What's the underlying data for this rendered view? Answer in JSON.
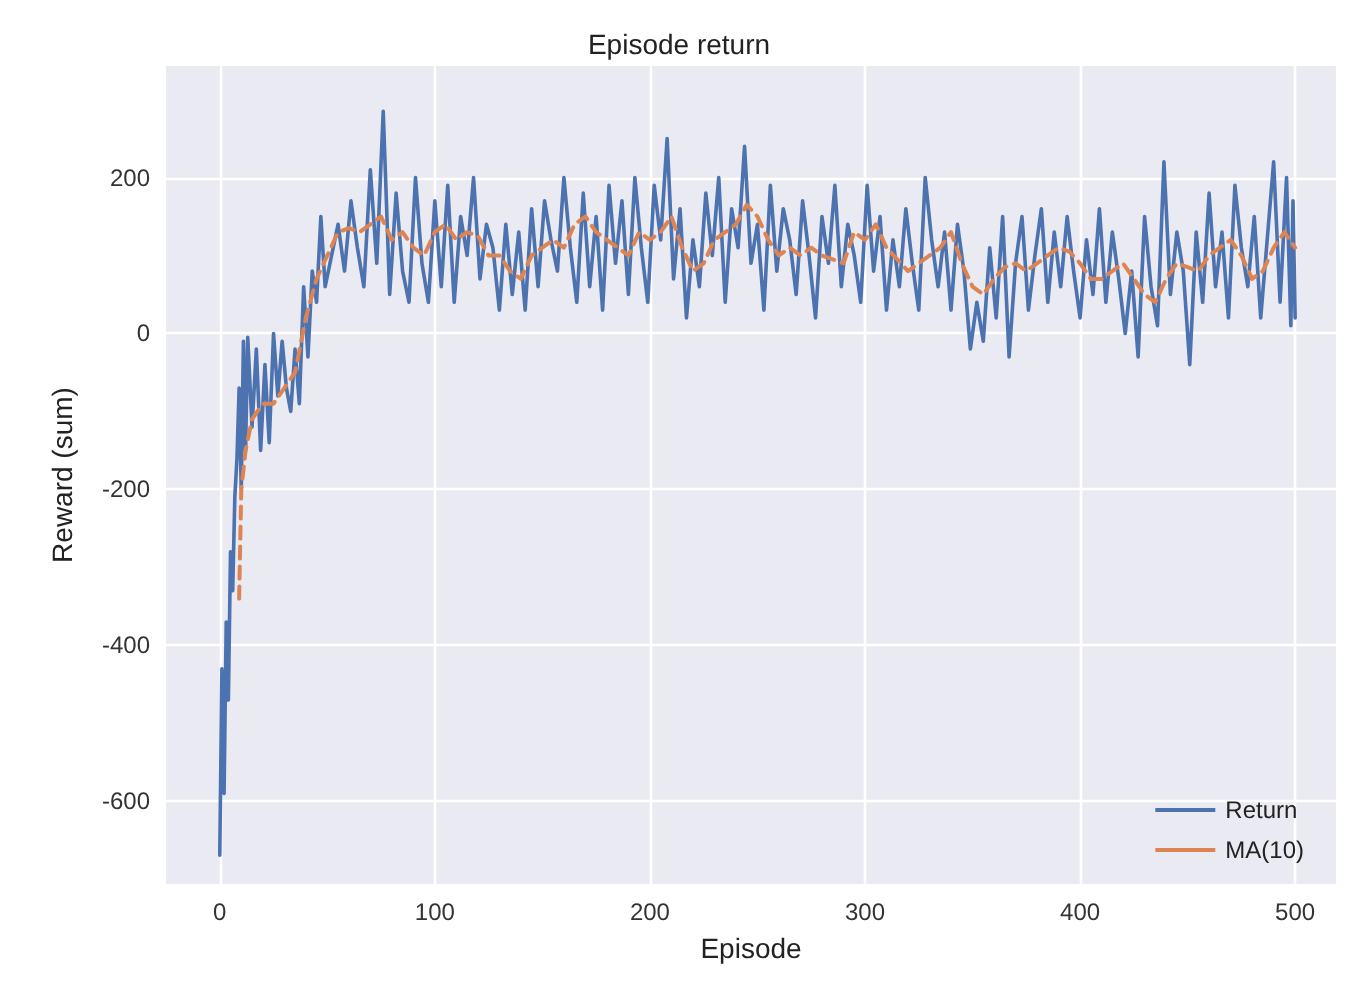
{
  "chart_data": {
    "type": "line",
    "title": "Episode return",
    "xlabel": "Episode",
    "ylabel": "Reward (sum)",
    "xlim": [
      -25,
      519
    ],
    "ylim": [
      -706,
      343
    ],
    "xticks": [
      0,
      100,
      200,
      300,
      400,
      500
    ],
    "yticks": [
      -600,
      -400,
      -200,
      0,
      200
    ],
    "grid": true,
    "legend": "bottom right",
    "series": [
      {
        "name": "Return",
        "color": "#4c72b0",
        "line_style": "solid",
        "x": [
          0,
          1,
          2,
          3,
          4,
          5,
          6,
          7,
          8,
          9,
          10,
          11,
          12,
          13,
          15,
          17,
          19,
          21,
          23,
          25,
          27,
          29,
          31,
          33,
          35,
          37,
          39,
          41,
          43,
          45,
          47,
          49,
          52,
          55,
          58,
          61,
          64,
          67,
          70,
          73,
          76,
          79,
          82,
          85,
          88,
          91,
          94,
          97,
          100,
          103,
          106,
          109,
          112,
          115,
          118,
          121,
          124,
          127,
          130,
          133,
          136,
          139,
          142,
          145,
          148,
          151,
          154,
          157,
          160,
          163,
          166,
          169,
          172,
          175,
          178,
          181,
          184,
          187,
          190,
          193,
          196,
          199,
          202,
          205,
          208,
          211,
          214,
          217,
          220,
          223,
          226,
          229,
          232,
          235,
          238,
          241,
          244,
          247,
          250,
          253,
          256,
          259,
          262,
          265,
          268,
          271,
          274,
          277,
          280,
          283,
          286,
          289,
          292,
          295,
          298,
          301,
          304,
          307,
          310,
          313,
          316,
          319,
          322,
          325,
          328,
          331,
          334,
          337,
          340,
          343,
          346,
          349,
          352,
          355,
          358,
          361,
          364,
          367,
          370,
          373,
          376,
          379,
          382,
          385,
          388,
          391,
          394,
          397,
          400,
          403,
          406,
          409,
          412,
          415,
          418,
          421,
          424,
          427,
          430,
          433,
          436,
          439,
          442,
          445,
          448,
          451,
          454,
          457,
          460,
          463,
          466,
          469,
          472,
          475,
          478,
          481,
          484,
          487,
          490,
          493,
          496,
          498,
          499,
          500
        ],
        "values": [
          -669,
          -430,
          -590,
          -370,
          -470,
          -280,
          -330,
          -210,
          -160,
          -70,
          -200,
          -10,
          -150,
          -5,
          -120,
          -20,
          -150,
          -40,
          -140,
          0,
          -80,
          -10,
          -70,
          -100,
          -20,
          -90,
          60,
          -30,
          80,
          40,
          150,
          60,
          100,
          140,
          80,
          170,
          110,
          60,
          210,
          90,
          285,
          50,
          180,
          80,
          40,
          200,
          90,
          40,
          170,
          60,
          190,
          40,
          150,
          100,
          200,
          70,
          140,
          110,
          30,
          140,
          50,
          130,
          30,
          160,
          60,
          170,
          120,
          80,
          200,
          110,
          40,
          180,
          60,
          150,
          30,
          190,
          90,
          170,
          50,
          200,
          110,
          40,
          190,
          120,
          250,
          70,
          160,
          20,
          120,
          60,
          180,
          100,
          200,
          40,
          160,
          110,
          240,
          90,
          140,
          30,
          190,
          80,
          160,
          120,
          50,
          170,
          100,
          20,
          150,
          90,
          190,
          60,
          140,
          100,
          40,
          190,
          80,
          150,
          30,
          120,
          60,
          160,
          90,
          30,
          200,
          120,
          60,
          130,
          30,
          140,
          80,
          -20,
          40,
          -10,
          110,
          20,
          150,
          -30,
          90,
          150,
          30,
          100,
          160,
          40,
          130,
          60,
          150,
          80,
          20,
          120,
          50,
          160,
          40,
          130,
          70,
          0,
          80,
          -30,
          150,
          60,
          10,
          220,
          50,
          130,
          80,
          -40,
          130,
          40,
          180,
          60,
          130,
          20,
          190,
          110,
          60,
          150,
          20,
          120,
          220,
          40,
          200,
          10,
          170,
          20
        ]
      },
      {
        "name": "MA(10)",
        "color": "#dd8452",
        "line_style": "dashed",
        "x": [
          9,
          10,
          12,
          15,
          20,
          25,
          30,
          35,
          40,
          45,
          50,
          55,
          60,
          65,
          70,
          75,
          80,
          85,
          90,
          95,
          100,
          105,
          110,
          115,
          120,
          125,
          130,
          135,
          140,
          145,
          150,
          155,
          160,
          165,
          170,
          175,
          180,
          185,
          190,
          195,
          200,
          205,
          210,
          215,
          220,
          225,
          230,
          235,
          240,
          245,
          250,
          255,
          260,
          265,
          270,
          275,
          280,
          285,
          290,
          295,
          300,
          305,
          310,
          315,
          320,
          325,
          330,
          335,
          340,
          345,
          350,
          355,
          360,
          365,
          370,
          375,
          380,
          385,
          390,
          395,
          400,
          405,
          410,
          415,
          420,
          425,
          430,
          435,
          440,
          445,
          450,
          455,
          460,
          465,
          470,
          475,
          480,
          485,
          490,
          495,
          500
        ],
        "values": [
          -340,
          -200,
          -150,
          -110,
          -90,
          -90,
          -70,
          -50,
          20,
          70,
          100,
          130,
          135,
          130,
          140,
          150,
          120,
          130,
          110,
          100,
          130,
          140,
          120,
          130,
          125,
          100,
          100,
          80,
          70,
          100,
          110,
          120,
          110,
          140,
          150,
          130,
          120,
          110,
          100,
          130,
          120,
          130,
          150,
          110,
          80,
          90,
          120,
          130,
          140,
          165,
          150,
          120,
          100,
          110,
          100,
          110,
          100,
          95,
          90,
          130,
          120,
          140,
          110,
          95,
          80,
          90,
          100,
          110,
          130,
          90,
          60,
          50,
          70,
          85,
          90,
          80,
          90,
          100,
          110,
          105,
          90,
          70,
          70,
          80,
          90,
          70,
          50,
          40,
          70,
          90,
          85,
          80,
          100,
          110,
          120,
          100,
          70,
          80,
          110,
          130,
          110
        ]
      }
    ]
  }
}
